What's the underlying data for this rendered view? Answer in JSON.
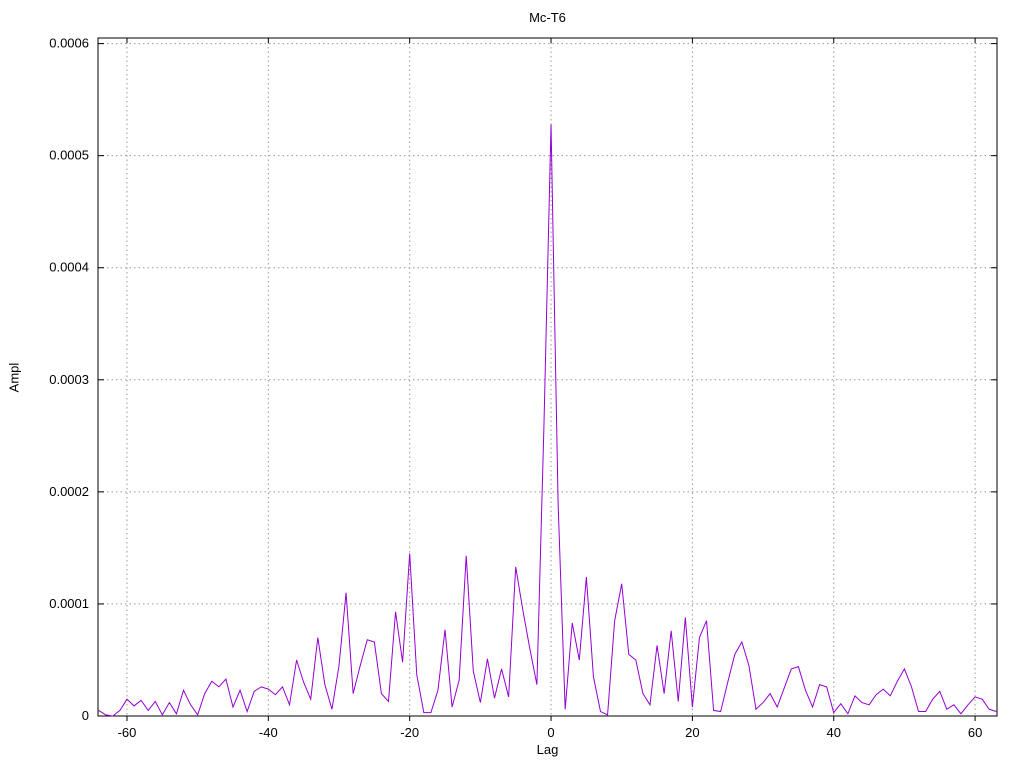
{
  "chart_data": {
    "type": "line",
    "title": "Mc-T6",
    "xlabel": "Lag",
    "ylabel": "Ampl",
    "legend_position": "none",
    "grid": true,
    "grid_style": "dotted",
    "xlim": [
      -64.1,
      63.1
    ],
    "ylim": [
      0,
      0.000605
    ],
    "line_color": "#9400d3",
    "grid_color": "#9a9a9a",
    "border_color": "#000000",
    "background_color": "#ffffff",
    "xticks": [
      {
        "v": -60,
        "label": "-60"
      },
      {
        "v": -40,
        "label": "-40"
      },
      {
        "v": -20,
        "label": "-20"
      },
      {
        "v": 0,
        "label": "0"
      },
      {
        "v": 20,
        "label": "20"
      },
      {
        "v": 40,
        "label": "40"
      },
      {
        "v": 60,
        "label": "60"
      }
    ],
    "yticks": [
      {
        "v": 0,
        "label": "0"
      },
      {
        "v": 0.0001,
        "label": "0.0001"
      },
      {
        "v": 0.0002,
        "label": "0.0002"
      },
      {
        "v": 0.0003,
        "label": "0.0003"
      },
      {
        "v": 0.0004,
        "label": "0.0004"
      },
      {
        "v": 0.0005,
        "label": "0.0005"
      },
      {
        "v": 0.0006,
        "label": "0.0006"
      }
    ],
    "series": [
      {
        "name": "Mc-T6",
        "points": [
          [
            -64,
            5e-06
          ],
          [
            -63,
            1e-06
          ],
          [
            -62,
            0
          ],
          [
            -61,
            5e-06
          ],
          [
            -60,
            1.5e-05
          ],
          [
            -59,
            9e-06
          ],
          [
            -58,
            1.4e-05
          ],
          [
            -57,
            5e-06
          ],
          [
            -56,
            1.3e-05
          ],
          [
            -55,
            1e-06
          ],
          [
            -54,
            1.2e-05
          ],
          [
            -53,
            2e-06
          ],
          [
            -52,
            2.3e-05
          ],
          [
            -51,
            1e-05
          ],
          [
            -50,
            1e-06
          ],
          [
            -49,
            2e-05
          ],
          [
            -48,
            3.1e-05
          ],
          [
            -47,
            2.6e-05
          ],
          [
            -46,
            3.3e-05
          ],
          [
            -45,
            8e-06
          ],
          [
            -44,
            2.3e-05
          ],
          [
            -43,
            4e-06
          ],
          [
            -42,
            2.2e-05
          ],
          [
            -41,
            2.6e-05
          ],
          [
            -40,
            2.4e-05
          ],
          [
            -39,
            1.9e-05
          ],
          [
            -38,
            2.6e-05
          ],
          [
            -37,
            1e-05
          ],
          [
            -36,
            5e-05
          ],
          [
            -35,
            3e-05
          ],
          [
            -34,
            1.5e-05
          ],
          [
            -33,
            7e-05
          ],
          [
            -32,
            2.8e-05
          ],
          [
            -31,
            6e-06
          ],
          [
            -30,
            4.5e-05
          ],
          [
            -29,
            0.00011
          ],
          [
            -28,
            2e-05
          ],
          [
            -27,
            4.5e-05
          ],
          [
            -26,
            6.8e-05
          ],
          [
            -25,
            6.6e-05
          ],
          [
            -24,
            2e-05
          ],
          [
            -23,
            1.3e-05
          ],
          [
            -22,
            9.3e-05
          ],
          [
            -21,
            4.8e-05
          ],
          [
            -20,
            0.000145
          ],
          [
            -19,
            3.7e-05
          ],
          [
            -18,
            3e-06
          ],
          [
            -17,
            3e-06
          ],
          [
            -16,
            2.3e-05
          ],
          [
            -15,
            7.7e-05
          ],
          [
            -14,
            8e-06
          ],
          [
            -13,
            3.2e-05
          ],
          [
            -12,
            0.000143
          ],
          [
            -11,
            4e-05
          ],
          [
            -10,
            1.2e-05
          ],
          [
            -9,
            5.1e-05
          ],
          [
            -8,
            1.6e-05
          ],
          [
            -7,
            4.2e-05
          ],
          [
            -6,
            1.7e-05
          ],
          [
            -5,
            0.000133
          ],
          [
            -4,
            9.5e-05
          ],
          [
            -3,
            6e-05
          ],
          [
            -2,
            2.8e-05
          ],
          [
            -1,
            0.00026
          ],
          [
            0,
            0.000528
          ],
          [
            1,
            0.00019
          ],
          [
            2,
            6e-06
          ],
          [
            3,
            8.3e-05
          ],
          [
            4,
            5e-05
          ],
          [
            5,
            0.000124
          ],
          [
            6,
            3.5e-05
          ],
          [
            7,
            4e-06
          ],
          [
            8,
            1e-06
          ],
          [
            9,
            8.5e-05
          ],
          [
            10,
            0.000118
          ],
          [
            11,
            5.5e-05
          ],
          [
            12,
            5e-05
          ],
          [
            13,
            2e-05
          ],
          [
            14,
            1e-05
          ],
          [
            15,
            6.3e-05
          ],
          [
            16,
            2e-05
          ],
          [
            17,
            7.6e-05
          ],
          [
            18,
            1.3e-05
          ],
          [
            19,
            8.8e-05
          ],
          [
            20,
            8e-06
          ],
          [
            21,
            7e-05
          ],
          [
            22,
            8.5e-05
          ],
          [
            23,
            5e-06
          ],
          [
            24,
            4e-06
          ],
          [
            25,
            3e-05
          ],
          [
            26,
            5.5e-05
          ],
          [
            27,
            6.6e-05
          ],
          [
            28,
            4.5e-05
          ],
          [
            29,
            6e-06
          ],
          [
            30,
            1.2e-05
          ],
          [
            31,
            2e-05
          ],
          [
            32,
            8e-06
          ],
          [
            33,
            2.5e-05
          ],
          [
            34,
            4.2e-05
          ],
          [
            35,
            4.4e-05
          ],
          [
            36,
            2.3e-05
          ],
          [
            37,
            8e-06
          ],
          [
            38,
            2.8e-05
          ],
          [
            39,
            2.6e-05
          ],
          [
            40,
            3e-06
          ],
          [
            41,
            1.1e-05
          ],
          [
            42,
            2e-06
          ],
          [
            43,
            1.8e-05
          ],
          [
            44,
            1.2e-05
          ],
          [
            45,
            1e-05
          ],
          [
            46,
            1.9e-05
          ],
          [
            47,
            2.4e-05
          ],
          [
            48,
            1.8e-05
          ],
          [
            49,
            3.1e-05
          ],
          [
            50,
            4.2e-05
          ],
          [
            51,
            2.6e-05
          ],
          [
            52,
            4e-06
          ],
          [
            53,
            4e-06
          ],
          [
            54,
            1.5e-05
          ],
          [
            55,
            2.2e-05
          ],
          [
            56,
            6e-06
          ],
          [
            57,
            1e-05
          ],
          [
            58,
            2e-06
          ],
          [
            59,
            1e-05
          ],
          [
            60,
            1.7e-05
          ],
          [
            61,
            1.5e-05
          ],
          [
            62,
            6e-06
          ],
          [
            63,
            4e-06
          ]
        ]
      }
    ]
  }
}
